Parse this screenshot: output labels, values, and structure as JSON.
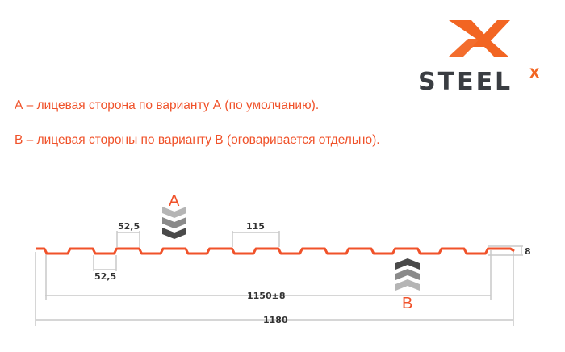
{
  "logo": {
    "text": "STEEL",
    "superscript": "X",
    "colors": {
      "orange": "#f26522",
      "dark": "#3a3d42"
    }
  },
  "notes": [
    "А – лицевая сторона по варианту А (по умолчанию).",
    "В – лицевая стороны по варианту В (оговаривается отдельно)."
  ],
  "diagram": {
    "side_a_label": "A",
    "side_b_label": "B",
    "dimensions": {
      "top_width": "52,5",
      "bottom_width": "52,5",
      "pitch": "115",
      "height": "8",
      "useful_width": "1150±8",
      "full_width": "1180"
    },
    "colors": {
      "profile": "#f0522a",
      "dim_lines": "#c8c8c8",
      "arrows": [
        "#b5b5b5",
        "#8a8a8a",
        "#4a4a4a"
      ]
    }
  }
}
